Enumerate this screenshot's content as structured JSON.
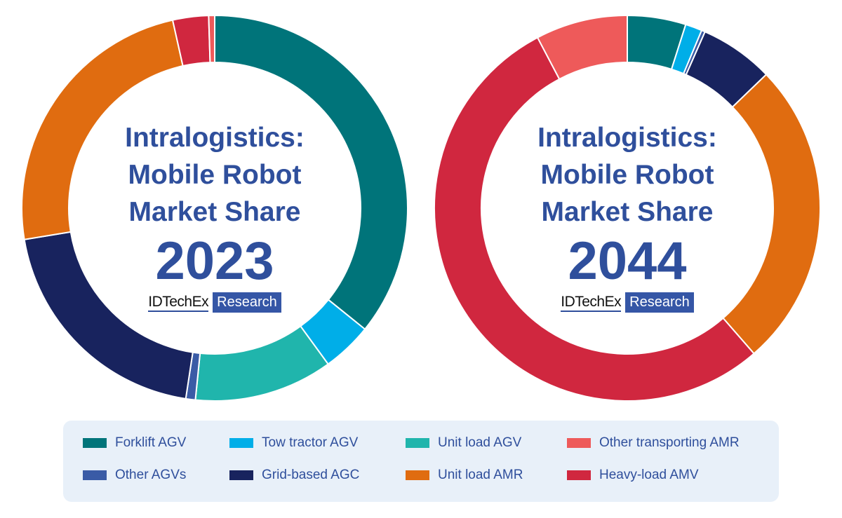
{
  "chart_data": [
    {
      "type": "pie",
      "title_lines": [
        "Intralogistics:",
        "Mobile Robot",
        "Market Share"
      ],
      "year": "2023",
      "slices": [
        {
          "category": "Forklift AGV",
          "value": 35.8
        },
        {
          "category": "Tow tractor AGV",
          "value": 4.2
        },
        {
          "category": "Unit load AGV",
          "value": 11.6
        },
        {
          "category": "Other AGVs",
          "value": 0.8
        },
        {
          "category": "Grid-based AGC",
          "value": 20.0
        },
        {
          "category": "Unit load AMR",
          "value": 24.1
        },
        {
          "category": "Heavy-load AMV",
          "value": 3.0
        },
        {
          "category": "Other transporting AMR",
          "value": 0.5
        }
      ]
    },
    {
      "type": "pie",
      "title_lines": [
        "Intralogistics:",
        "Mobile Robot",
        "Market Share"
      ],
      "year": "2044",
      "slices": [
        {
          "category": "Forklift AGV",
          "value": 4.9
        },
        {
          "category": "Tow tractor AGV",
          "value": 1.4
        },
        {
          "category": "Unit load AGV",
          "value": 0
        },
        {
          "category": "Other AGVs",
          "value": 0.3
        },
        {
          "category": "Grid-based AGC",
          "value": 6.2
        },
        {
          "category": "Unit load AMR",
          "value": 25.8
        },
        {
          "category": "Heavy-load AMV",
          "value": 53.7
        },
        {
          "category": "Other transporting AMR",
          "value": 7.7
        }
      ]
    }
  ],
  "logo": {
    "name": "IDTechEx",
    "tag": "Research"
  },
  "legend": [
    {
      "label": "Forklift AGV",
      "color": "#00747a"
    },
    {
      "label": "Tow tractor AGV",
      "color": "#00aee8"
    },
    {
      "label": "Unit load AGV",
      "color": "#20b5ac"
    },
    {
      "label": "Other transporting AMR",
      "color": "#ee5a5a"
    },
    {
      "label": "Other AGVs",
      "color": "#3a5ba6"
    },
    {
      "label": "Grid-based AGC",
      "color": "#18235e"
    },
    {
      "label": "Unit load AMR",
      "color": "#e06c10"
    },
    {
      "label": "Heavy-load AMV",
      "color": "#d0273f"
    }
  ]
}
